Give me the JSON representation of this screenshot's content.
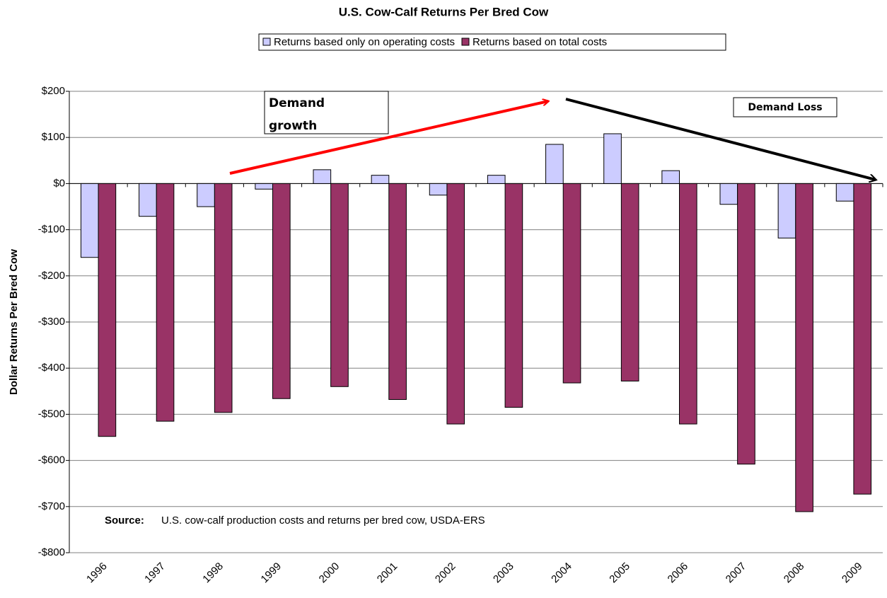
{
  "chart_data": {
    "type": "bar",
    "title": "U.S. Cow-Calf Returns Per Bred Cow",
    "y_label": "Dollar Returns Per Bred Cow",
    "categories": [
      "1996",
      "1997",
      "1998",
      "1999",
      "2000",
      "2001",
      "2002",
      "2003",
      "2004",
      "2005",
      "2006",
      "2007",
      "2008",
      "2009"
    ],
    "series": [
      {
        "name": "Returns based only on operating costs",
        "color": "#ccccff",
        "values": [
          -160,
          -71,
          -50,
          -12,
          30,
          18,
          -25,
          18,
          85,
          108,
          28,
          -45,
          -118,
          -38
        ]
      },
      {
        "name": "Returns based on total costs",
        "color": "#993366",
        "values": [
          -548,
          -515,
          -496,
          -466,
          -440,
          -468,
          -521,
          -485,
          -432,
          -428,
          -521,
          -608,
          -711,
          -673
        ]
      }
    ],
    "ylim": [
      -800,
      200
    ],
    "yticks": [
      {
        "value": -800,
        "label": "-$800"
      },
      {
        "value": -700,
        "label": "-$700"
      },
      {
        "value": -600,
        "label": "-$600"
      },
      {
        "value": -500,
        "label": "-$500"
      },
      {
        "value": -400,
        "label": "-$400"
      },
      {
        "value": -300,
        "label": "-$300"
      },
      {
        "value": -200,
        "label": "-$200"
      },
      {
        "value": -100,
        "label": "-$100"
      },
      {
        "value": 0,
        "label": "$0"
      },
      {
        "value": 100,
        "label": "$100"
      },
      {
        "value": 200,
        "label": "$200"
      }
    ],
    "grid": true,
    "legend": "top",
    "annotations": [
      "Demand growth",
      "Demand Loss"
    ],
    "source_label": "Source:",
    "source": "U.S. cow-calf production costs and returns per bred cow, USDA-ERS"
  }
}
